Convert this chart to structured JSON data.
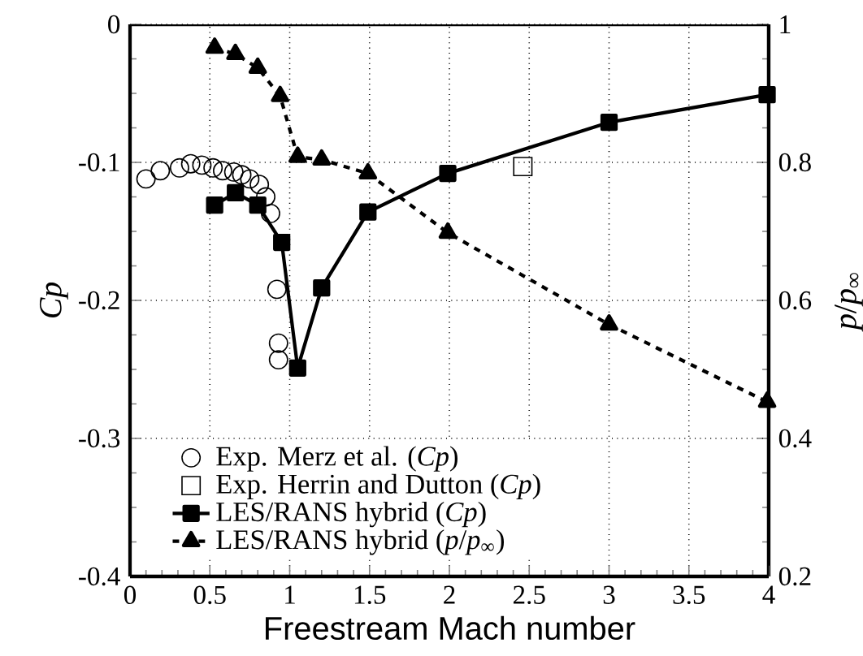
{
  "chart_data": {
    "type": "line",
    "xlabel": "Freestream Mach number",
    "ylabel": "*Cp*",
    "y2label": "*p*/*p*$_{∞}$",
    "xlim": [
      0,
      4
    ],
    "xticks": [
      0,
      0.5,
      1,
      1.5,
      2,
      2.5,
      3,
      3.5,
      4
    ],
    "ylim": [
      -0.4,
      0
    ],
    "yticks": [
      -0.4,
      -0.3,
      -0.2,
      -0.1,
      0
    ],
    "y2lim": [
      0.2,
      1
    ],
    "y2ticks": [
      0.2,
      0.4,
      0.6,
      0.8,
      1
    ],
    "grid": true,
    "legend": "bottom left",
    "series": [
      {
        "name": "Exp. Merz et al. (*Cp*)",
        "type": "scatter",
        "marker": "circle",
        "color": "#000000",
        "x": [
          0.1,
          0.19,
          0.31,
          0.38,
          0.45,
          0.52,
          0.58,
          0.65,
          0.7,
          0.75,
          0.81,
          0.85,
          0.88,
          0.92,
          0.93,
          0.93
        ],
        "values": [
          -0.112,
          -0.106,
          -0.104,
          -0.101,
          -0.102,
          -0.104,
          -0.106,
          -0.107,
          -0.109,
          -0.112,
          -0.116,
          -0.125,
          -0.137,
          -0.192,
          -0.231,
          -0.243
        ]
      },
      {
        "name": "Exp. Herrin and Dutton (*Cp*)",
        "type": "scatter",
        "marker": "square",
        "color": "#000000",
        "x": [
          2.46
        ],
        "values": [
          -0.103
        ]
      },
      {
        "name": "LES/RANS hybrid (*Cp*)",
        "marker": "square",
        "line_style": "solid",
        "color": "#000000",
        "x": [
          0.53,
          0.66,
          0.8,
          0.95,
          1.05,
          1.2,
          1.49,
          1.99,
          3.0,
          3.99
        ],
        "values": [
          -0.131,
          -0.122,
          -0.131,
          -0.158,
          -0.249,
          -0.191,
          -0.136,
          -0.108,
          -0.071,
          -0.051
        ]
      },
      {
        "name": "LES/RANS hybrid (*p*/*p*$_{∞}$)",
        "axis": "y2",
        "marker": "triangle",
        "line_style": "dashed",
        "color": "#000000",
        "x": [
          0.53,
          0.66,
          0.8,
          0.94,
          1.05,
          1.2,
          1.49,
          1.99,
          3.0,
          3.99
        ],
        "values": [
          0.966,
          0.957,
          0.937,
          0.896,
          0.808,
          0.804,
          0.784,
          0.698,
          0.565,
          0.453
        ]
      }
    ]
  }
}
